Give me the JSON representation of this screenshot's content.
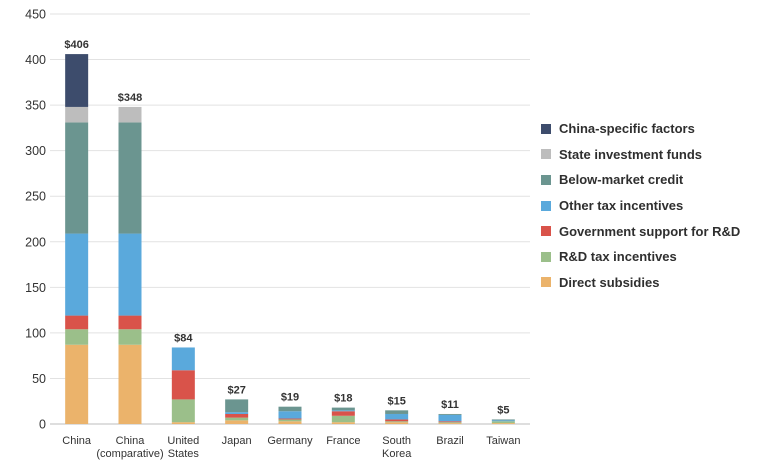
{
  "chart_data": {
    "type": "bar",
    "stacked": true,
    "categories": [
      [
        "China"
      ],
      [
        "China",
        "(comparative)"
      ],
      [
        "United",
        "States"
      ],
      [
        "Japan"
      ],
      [
        "Germany"
      ],
      [
        "France"
      ],
      [
        "South",
        "Korea"
      ],
      [
        "Brazil"
      ],
      [
        "Taiwan"
      ]
    ],
    "totals": [
      "$406",
      "$348",
      "$84",
      "$27",
      "$19",
      "$18",
      "$15",
      "$11",
      "$5"
    ],
    "series": [
      {
        "name": "Direct subsidies",
        "color": "#ebb36b",
        "values": [
          87,
          87,
          2,
          4,
          3,
          2,
          2,
          1,
          1
        ]
      },
      {
        "name": "R&D tax incentives",
        "color": "#9bbf8a",
        "values": [
          17,
          17,
          25,
          3,
          2,
          7,
          1,
          1,
          2
        ]
      },
      {
        "name": "Government support for R&D",
        "color": "#d9534a",
        "values": [
          15,
          15,
          32,
          4,
          1,
          5,
          2,
          1,
          0
        ]
      },
      {
        "name": "Other tax incentives",
        "color": "#5aa9dc",
        "values": [
          90,
          90,
          25,
          2,
          8,
          1,
          6,
          7,
          1
        ]
      },
      {
        "name": "Below-market credit",
        "color": "#6b9590",
        "values": [
          122,
          122,
          0,
          14,
          5,
          3,
          4,
          1,
          1
        ]
      },
      {
        "name": "State investment funds",
        "color": "#bdbdbd",
        "values": [
          17,
          17,
          0,
          0,
          0,
          0,
          0,
          0,
          0
        ]
      },
      {
        "name": "China-specific factors",
        "color": "#3d4c6c",
        "values": [
          58,
          0,
          0,
          0,
          0,
          0,
          0,
          0,
          0
        ]
      }
    ],
    "ylim": [
      0,
      450
    ],
    "yticks": [
      "0",
      "50",
      "100",
      "150",
      "200",
      "250",
      "300",
      "350",
      "400",
      "450"
    ],
    "grid": true,
    "legend_position": "right",
    "title": "",
    "xlabel": "",
    "ylabel": ""
  }
}
